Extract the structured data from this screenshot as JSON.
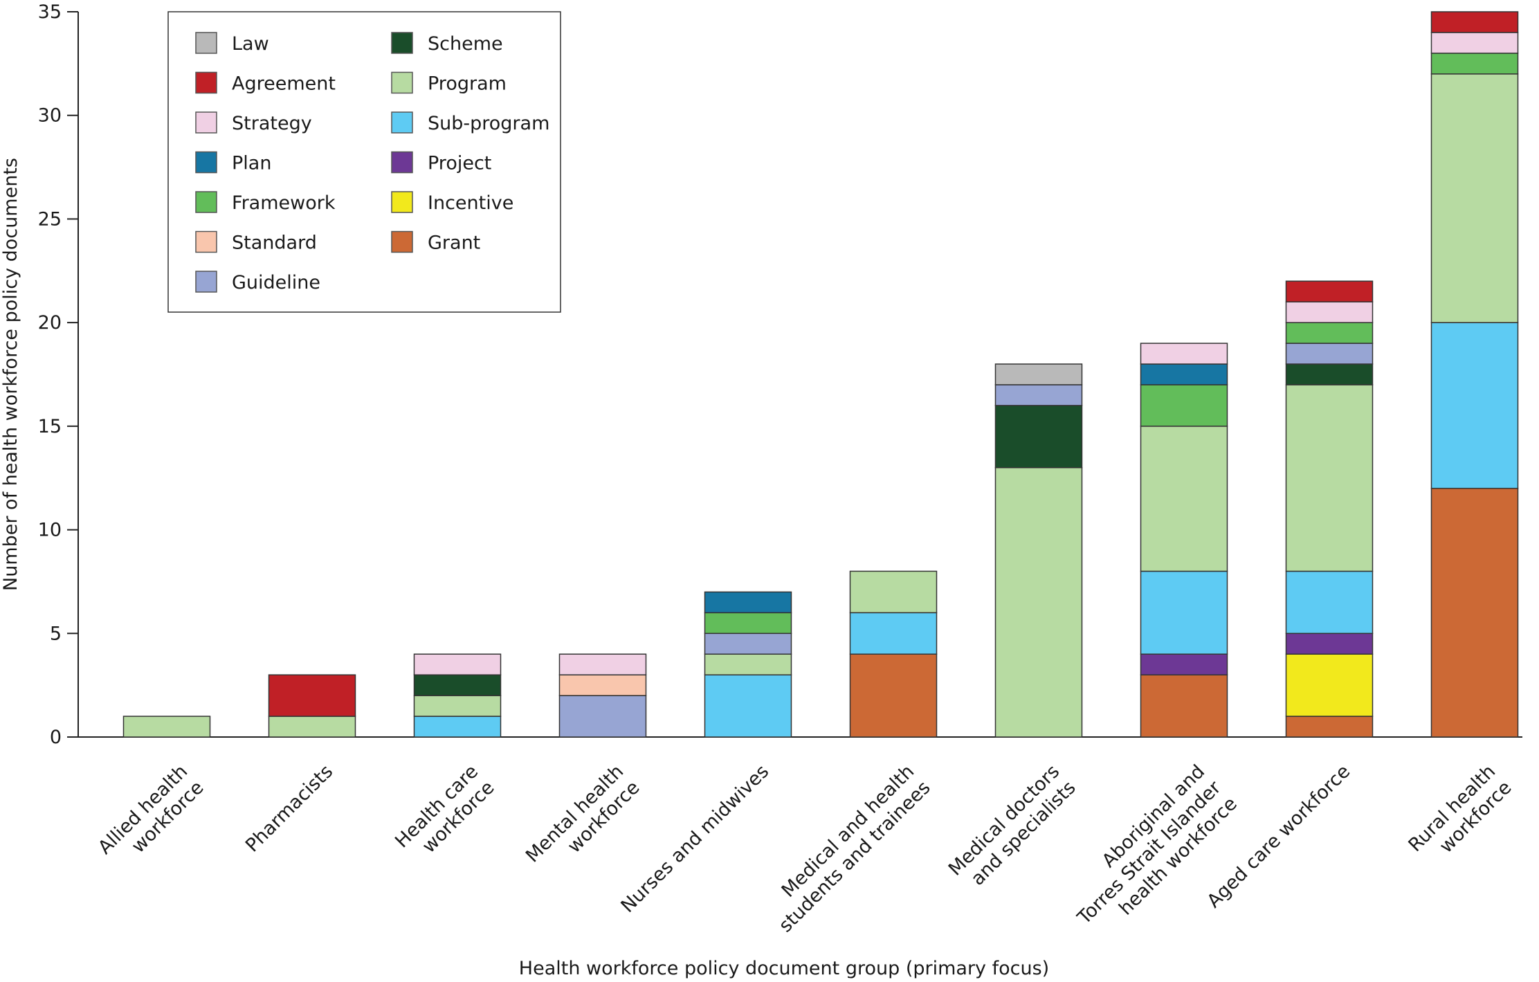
{
  "chart_data": {
    "type": "bar",
    "stacked": true,
    "title": "",
    "xlabel": "Health workforce policy document group (primary focus)",
    "ylabel": "Number of health workforce policy documents",
    "ylim": [
      0,
      35
    ],
    "yticks": [
      0,
      5,
      10,
      15,
      20,
      25,
      30,
      35
    ],
    "grid": false,
    "legend_position": "top-left",
    "categories": [
      [
        "Allied health",
        "workforce"
      ],
      [
        "Pharmacists"
      ],
      [
        "Health care",
        "workforce"
      ],
      [
        "Mental health",
        "workforce"
      ],
      [
        "Nurses and midwives"
      ],
      [
        "Medical and health",
        "students and trainees"
      ],
      [
        "Medical doctors",
        "and specialists"
      ],
      [
        "Aboriginal and",
        "Torres Strait Islander",
        "health workforce"
      ],
      [
        "Aged care workforce"
      ],
      [
        "Rural health",
        "workforce"
      ]
    ],
    "series": [
      {
        "name": "Grant",
        "color": "#cc6935",
        "values": [
          0,
          0,
          0,
          0,
          0,
          4,
          0,
          3,
          1,
          12
        ]
      },
      {
        "name": "Incentive",
        "color": "#f2e91c",
        "values": [
          0,
          0,
          0,
          0,
          0,
          0,
          0,
          0,
          3,
          0
        ]
      },
      {
        "name": "Project",
        "color": "#6d3895",
        "values": [
          0,
          0,
          0,
          0,
          0,
          0,
          0,
          1,
          1,
          0
        ]
      },
      {
        "name": "Sub-program",
        "color": "#5ecbf3",
        "values": [
          0,
          0,
          1,
          0,
          3,
          2,
          0,
          4,
          3,
          8
        ]
      },
      {
        "name": "Program",
        "color": "#b7dba2",
        "values": [
          1,
          1,
          1,
          0,
          1,
          2,
          13,
          7,
          9,
          12
        ]
      },
      {
        "name": "Scheme",
        "color": "#1a4d2a",
        "values": [
          0,
          0,
          1,
          0,
          0,
          0,
          3,
          0,
          1,
          0
        ]
      },
      {
        "name": "Guideline",
        "color": "#97a5d3",
        "values": [
          0,
          0,
          0,
          2,
          1,
          0,
          1,
          0,
          1,
          0
        ]
      },
      {
        "name": "Standard",
        "color": "#f9c6ad",
        "values": [
          0,
          0,
          0,
          1,
          0,
          0,
          0,
          0,
          0,
          0
        ]
      },
      {
        "name": "Framework",
        "color": "#62bd5a",
        "values": [
          0,
          0,
          0,
          0,
          1,
          0,
          0,
          2,
          1,
          1
        ]
      },
      {
        "name": "Plan",
        "color": "#1776a3",
        "values": [
          0,
          0,
          0,
          0,
          1,
          0,
          0,
          1,
          0,
          0
        ]
      },
      {
        "name": "Strategy",
        "color": "#f0d0e4",
        "values": [
          0,
          0,
          1,
          1,
          0,
          0,
          0,
          1,
          1,
          1
        ]
      },
      {
        "name": "Agreement",
        "color": "#c02026",
        "values": [
          0,
          2,
          0,
          0,
          0,
          0,
          0,
          0,
          1,
          1
        ]
      },
      {
        "name": "Law",
        "color": "#b9b9b9",
        "values": [
          0,
          0,
          0,
          0,
          0,
          0,
          1,
          0,
          0,
          0
        ]
      }
    ],
    "legend_order": [
      [
        "Law",
        "Agreement",
        "Strategy",
        "Plan",
        "Framework",
        "Standard",
        "Guideline"
      ],
      [
        "Scheme",
        "Program",
        "Sub-program",
        "Project",
        "Incentive",
        "Grant"
      ]
    ]
  }
}
